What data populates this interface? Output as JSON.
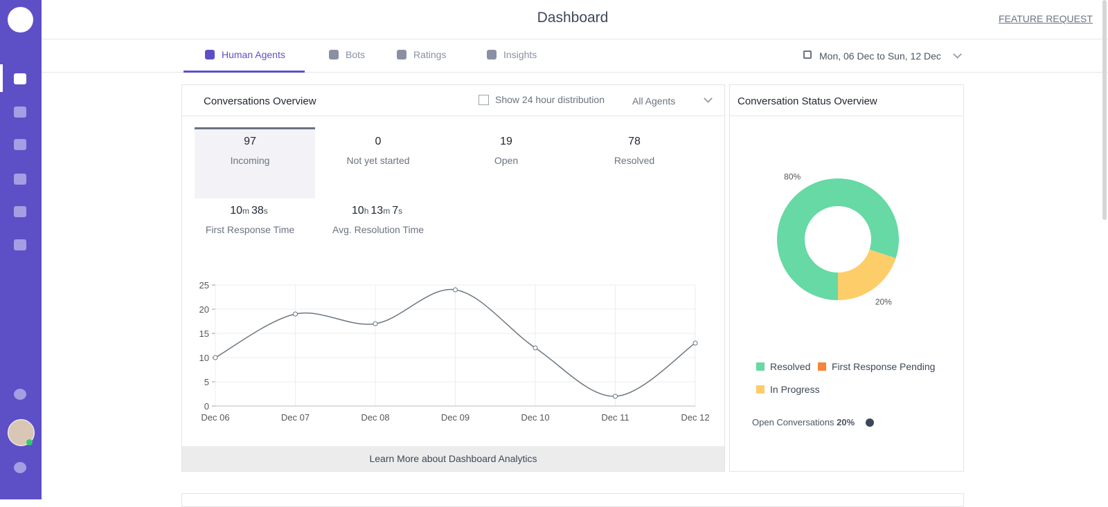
{
  "header": {
    "title": "Dashboard",
    "feature_request": "FEATURE REQUEST"
  },
  "tabs": [
    "Human Agents",
    "Bots",
    "Ratings",
    "Insights"
  ],
  "date_range": {
    "start": "Mon, 06 Dec",
    "separator": "to",
    "end": "Sun, 12 Dec"
  },
  "overview": {
    "title": "Conversations Overview",
    "checkbox_label": "Show 24 hour distribution",
    "agent_filter": "All Agents",
    "stats": [
      {
        "value": 97,
        "label": "Incoming"
      },
      {
        "value": 0,
        "label": "Not yet started"
      },
      {
        "value": 19,
        "label": "Open"
      },
      {
        "value": 78,
        "label": "Resolved"
      }
    ],
    "times": [
      {
        "parts": [
          "10",
          "m",
          "38",
          "s"
        ],
        "label": "First Response Time"
      },
      {
        "parts": [
          "10",
          "h",
          "13",
          "m",
          "7",
          "s"
        ],
        "label": "Avg. Resolution Time"
      }
    ],
    "footer_link": "Learn More about Dashboard Analytics"
  },
  "chart_data": [
    {
      "type": "line",
      "categories": [
        "Dec 06",
        "Dec 07",
        "Dec 08",
        "Dec 09",
        "Dec 10",
        "Dec 11",
        "Dec 12"
      ],
      "values": [
        10,
        19,
        17,
        24,
        12,
        2,
        13
      ],
      "color": "#6b7680",
      "ylim": [
        0,
        25
      ],
      "yticks": [
        0,
        5,
        10,
        15,
        20,
        25
      ],
      "grid": true
    },
    {
      "type": "pie",
      "title": "Conversation Status Overview",
      "categories": [
        "Resolved",
        "First Response Pending",
        "In Progress"
      ],
      "values": [
        80,
        0,
        20
      ],
      "value_labels": [
        "80%",
        null,
        "20%"
      ],
      "colors": [
        "#66d9a4",
        "#f6843a",
        "#fdcd6a"
      ]
    }
  ],
  "status": {
    "open_label": "Open Conversations",
    "open_value": "20%"
  }
}
